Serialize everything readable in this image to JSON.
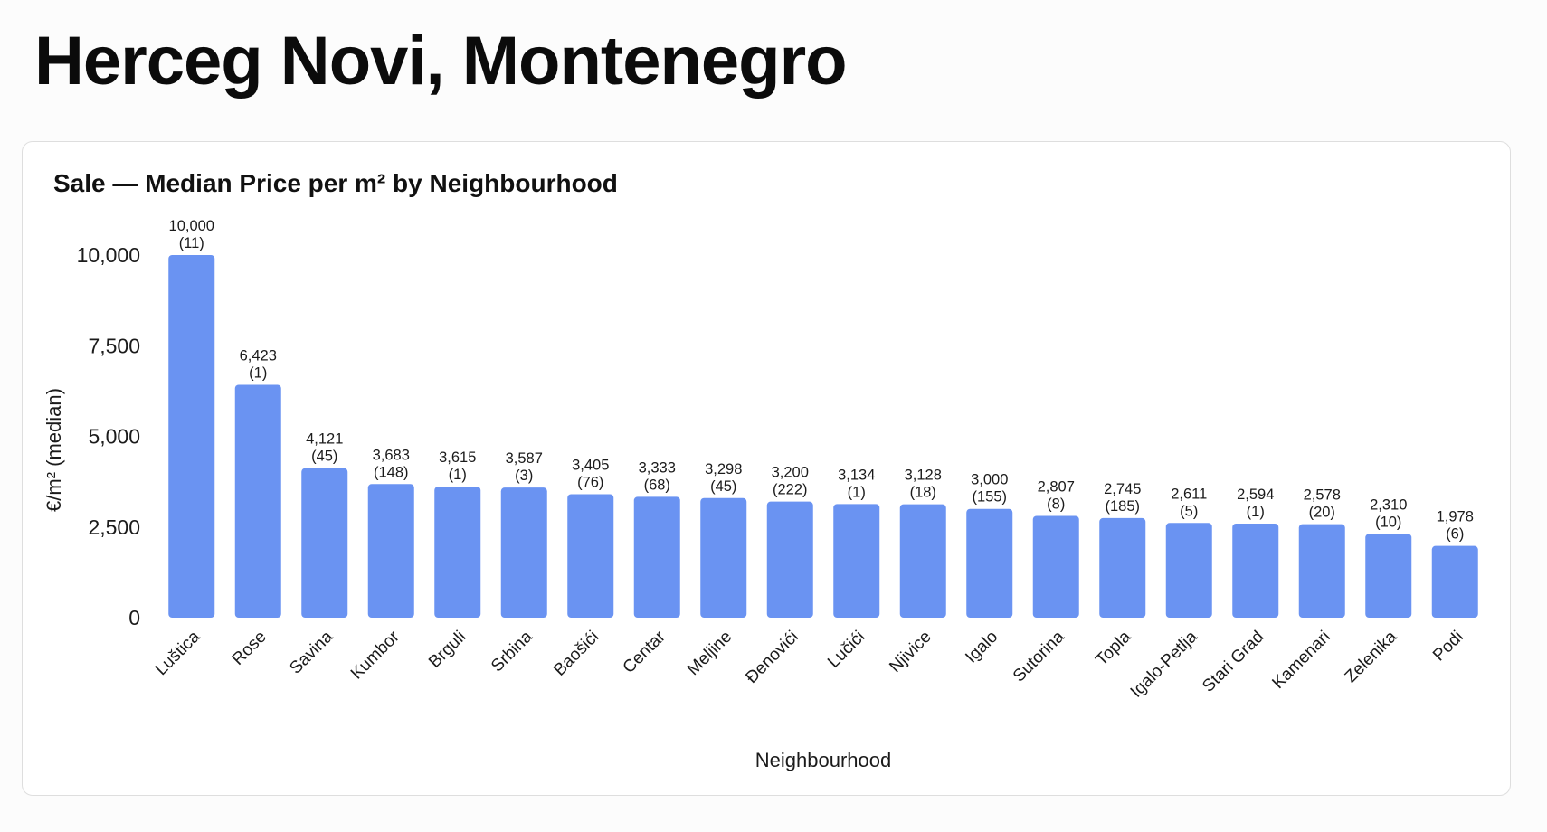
{
  "page": {
    "title": "Herceg Novi, Montenegro"
  },
  "chart_data": {
    "type": "bar",
    "title": "Sale — Median Price per m² by Neighbourhood",
    "xlabel": "Neighbourhood",
    "ylabel": "€/m² (median)",
    "ylim": [
      0,
      10000
    ],
    "yticks": [
      0,
      2500,
      5000,
      7500,
      10000
    ],
    "ytick_labels": [
      "0",
      "2,500",
      "5,000",
      "7,500",
      "10,000"
    ],
    "grid": false,
    "legend": "none",
    "bar_color": "#6a93f2",
    "categories": [
      "Luštica",
      "Rose",
      "Savina",
      "Kumbor",
      "Brguli",
      "Srbina",
      "Baošići",
      "Centar",
      "Meljine",
      "Đenovići",
      "Lučići",
      "Njivice",
      "Igalo",
      "Sutorina",
      "Topla",
      "Igalo-Petlja",
      "Stari Grad",
      "Kamenari",
      "Zelenika",
      "Podi"
    ],
    "values": [
      10000,
      6423,
      4121,
      3683,
      3615,
      3587,
      3405,
      3333,
      3298,
      3200,
      3134,
      3128,
      3000,
      2807,
      2745,
      2611,
      2594,
      2578,
      2310,
      1978
    ],
    "value_labels": [
      "10,000",
      "6,423",
      "4,121",
      "3,683",
      "3,615",
      "3,587",
      "3,405",
      "3,333",
      "3,298",
      "3,200",
      "3,134",
      "3,128",
      "3,000",
      "2,807",
      "2,745",
      "2,611",
      "2,594",
      "2,578",
      "2,310",
      "1,978"
    ],
    "counts": [
      "(11)",
      "(1)",
      "(45)",
      "(148)",
      "(1)",
      "(3)",
      "(76)",
      "(68)",
      "(45)",
      "(222)",
      "(1)",
      "(18)",
      "(155)",
      "(8)",
      "(185)",
      "(5)",
      "(1)",
      "(20)",
      "(10)",
      "(6)"
    ]
  }
}
